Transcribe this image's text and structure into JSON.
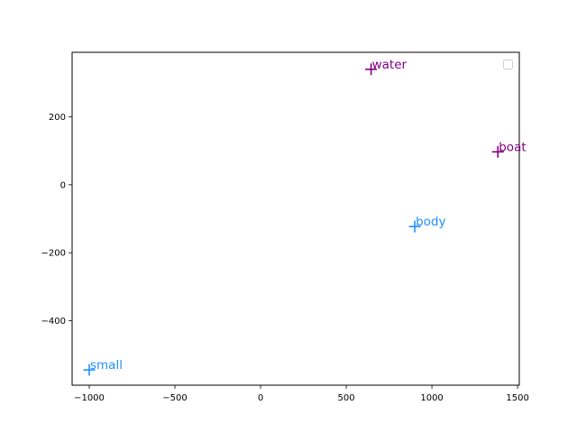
{
  "chart_data": {
    "type": "scatter",
    "title": "",
    "xlabel": "",
    "ylabel": "",
    "xlim": [
      -1100,
      1510
    ],
    "ylim": [
      -590,
      390
    ],
    "xticks": [
      -1000,
      -500,
      0,
      500,
      1000,
      1500
    ],
    "yticks": [
      -400,
      -200,
      0,
      200
    ],
    "xtick_labels": [
      "−1000",
      "−500",
      "0",
      "500",
      "1000",
      "1500"
    ],
    "ytick_labels": [
      "−400",
      "−200",
      "0",
      "200"
    ],
    "marker": "plus",
    "legend": {
      "placement": "top-right",
      "entries": []
    },
    "grid": false,
    "points": [
      {
        "label": "water",
        "x": 645,
        "y": 340,
        "color": "#800080"
      },
      {
        "label": "boat",
        "x": 1385,
        "y": 97,
        "color": "#800080"
      },
      {
        "label": "body",
        "x": 900,
        "y": -123,
        "color": "#1e90ff"
      },
      {
        "label": "small",
        "x": -1000,
        "y": -545,
        "color": "#1e90ff"
      }
    ]
  }
}
